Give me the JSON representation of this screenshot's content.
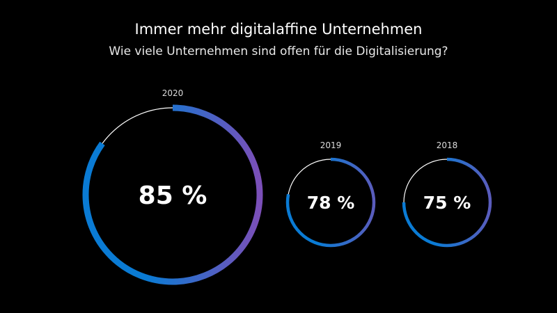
{
  "chart_data": {
    "type": "donut",
    "title": "Immer mehr digitalaffine Unternehmen",
    "subtitle": "Wie viele Unternehmen sind offen für die Digitalisierung?",
    "categories": [
      "2020",
      "2019",
      "2018"
    ],
    "values": [
      85,
      78,
      75
    ],
    "labels": [
      "85 %",
      "78 %",
      "75 %"
    ],
    "unit": "%",
    "colors": {
      "gradient_start": "#0a7bd4",
      "gradient_end": "#7b4fb8",
      "remainder": "#ffffff",
      "background": "#000000"
    }
  }
}
